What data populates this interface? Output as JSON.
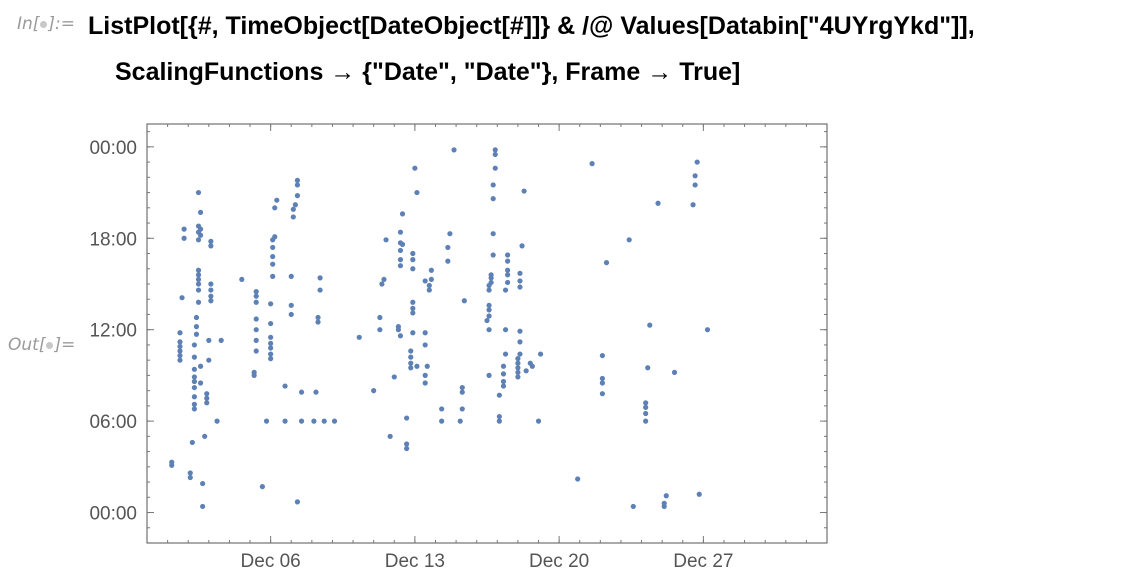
{
  "notebook": {
    "input_label": "In[",
    "input_label_end": "]:=",
    "output_label": "Out[",
    "output_label_end": "]=",
    "code_line1": "ListPlot[{#, TimeObject[DateObject[#]]} & /@ Values[Databin[\"4UYrgYkd\"]],",
    "code_line2": "ScalingFunctions → {\"Date\", \"Date\"}, Frame → True]"
  },
  "chart_data": {
    "type": "scatter",
    "color": "#5e81b5",
    "frame": true,
    "grid": false,
    "x_axis": {
      "scale": "date",
      "range": [
        "Nov 30",
        "Jan 2"
      ],
      "tick_labels": [
        "Dec 06",
        "Dec 13",
        "Dec 20",
        "Dec 27"
      ],
      "tick_days": [
        6,
        13,
        20,
        27
      ]
    },
    "y_axis": {
      "scale": "time",
      "range": [
        "-02:00",
        "25:30"
      ],
      "tick_labels": [
        "00:00",
        "06:00",
        "12:00",
        "18:00",
        "00:00"
      ],
      "tick_hours": [
        0,
        6,
        12,
        18,
        24
      ]
    },
    "points": [
      [
        1.2,
        3.3
      ],
      [
        1.2,
        3.1
      ],
      [
        1.6,
        11.8
      ],
      [
        1.6,
        11.2
      ],
      [
        1.6,
        10.9
      ],
      [
        1.6,
        10.6
      ],
      [
        1.6,
        10.3
      ],
      [
        1.6,
        10.0
      ],
      [
        1.7,
        14.1
      ],
      [
        1.8,
        18.6
      ],
      [
        1.8,
        18.0
      ],
      [
        2.1,
        2.6
      ],
      [
        2.1,
        2.3
      ],
      [
        2.2,
        4.6
      ],
      [
        2.3,
        11.0
      ],
      [
        2.3,
        10.2
      ],
      [
        2.3,
        9.4
      ],
      [
        2.3,
        8.9
      ],
      [
        2.3,
        8.6
      ],
      [
        2.3,
        8.2
      ],
      [
        2.3,
        7.6
      ],
      [
        2.3,
        7.1
      ],
      [
        2.3,
        6.8
      ],
      [
        2.4,
        12.2
      ],
      [
        2.4,
        11.7
      ],
      [
        2.4,
        12.8
      ],
      [
        2.5,
        15.6
      ],
      [
        2.5,
        15.3
      ],
      [
        2.5,
        15.0
      ],
      [
        2.5,
        14.6
      ],
      [
        2.5,
        13.8
      ],
      [
        2.5,
        15.9
      ],
      [
        2.5,
        17.9
      ],
      [
        2.5,
        18.4
      ],
      [
        2.5,
        18.8
      ],
      [
        2.6,
        19.7
      ],
      [
        2.6,
        18.6
      ],
      [
        2.6,
        18.2
      ],
      [
        2.5,
        21.0
      ],
      [
        2.6,
        9.6
      ],
      [
        2.6,
        8.5
      ],
      [
        2.7,
        0.4
      ],
      [
        2.7,
        1.9
      ],
      [
        2.8,
        5.0
      ],
      [
        2.9,
        7.8
      ],
      [
        2.9,
        7.5
      ],
      [
        2.9,
        7.2
      ],
      [
        3.0,
        10.0
      ],
      [
        3.0,
        11.3
      ],
      [
        3.1,
        17.8
      ],
      [
        3.1,
        17.5
      ],
      [
        3.1,
        15.0
      ],
      [
        3.1,
        14.6
      ],
      [
        3.1,
        14.2
      ],
      [
        3.1,
        13.9
      ],
      [
        3.4,
        6.0
      ],
      [
        3.6,
        11.3
      ],
      [
        4.6,
        15.3
      ],
      [
        5.2,
        9.2
      ],
      [
        5.2,
        9.0
      ],
      [
        5.3,
        14.5
      ],
      [
        5.3,
        14.2
      ],
      [
        5.3,
        13.8
      ],
      [
        5.3,
        12.7
      ],
      [
        5.3,
        12.0
      ],
      [
        5.3,
        11.3
      ],
      [
        5.3,
        10.6
      ],
      [
        5.6,
        1.7
      ],
      [
        5.8,
        6.0
      ],
      [
        6.0,
        11.5
      ],
      [
        6.0,
        11.1
      ],
      [
        6.0,
        10.8
      ],
      [
        6.0,
        10.4
      ],
      [
        6.0,
        10.1
      ],
      [
        6.0,
        12.4
      ],
      [
        6.0,
        13.7
      ],
      [
        6.1,
        15.5
      ],
      [
        6.1,
        16.3
      ],
      [
        6.1,
        16.8
      ],
      [
        6.1,
        17.4
      ],
      [
        6.1,
        17.9
      ],
      [
        6.2,
        18.1
      ],
      [
        6.2,
        20.0
      ],
      [
        6.3,
        20.5
      ],
      [
        6.7,
        6.0
      ],
      [
        6.7,
        8.3
      ],
      [
        7.0,
        13.0
      ],
      [
        7.0,
        13.6
      ],
      [
        7.0,
        15.5
      ],
      [
        7.1,
        19.4
      ],
      [
        7.1,
        19.9
      ],
      [
        7.2,
        20.2
      ],
      [
        7.3,
        20.8
      ],
      [
        7.3,
        21.5
      ],
      [
        7.3,
        21.8
      ],
      [
        7.3,
        0.7
      ],
      [
        7.5,
        6.0
      ],
      [
        7.5,
        7.9
      ],
      [
        8.1,
        6.0
      ],
      [
        8.2,
        7.9
      ],
      [
        8.3,
        12.5
      ],
      [
        8.3,
        12.8
      ],
      [
        8.4,
        14.6
      ],
      [
        8.4,
        15.4
      ],
      [
        8.6,
        6.0
      ],
      [
        9.1,
        6.0
      ],
      [
        10.3,
        11.5
      ],
      [
        11.0,
        8.0
      ],
      [
        11.3,
        12.0
      ],
      [
        11.3,
        12.8
      ],
      [
        11.4,
        15.0
      ],
      [
        11.5,
        15.3
      ],
      [
        11.6,
        17.9
      ],
      [
        11.8,
        5.0
      ],
      [
        12.0,
        8.9
      ],
      [
        12.2,
        12.0
      ],
      [
        12.2,
        12.2
      ],
      [
        12.3,
        16.2
      ],
      [
        12.3,
        16.6
      ],
      [
        12.3,
        17.2
      ],
      [
        12.3,
        17.7
      ],
      [
        12.3,
        18.4
      ],
      [
        12.4,
        17.6
      ],
      [
        12.4,
        19.6
      ],
      [
        12.3,
        11.6
      ],
      [
        12.6,
        6.2
      ],
      [
        12.6,
        4.5
      ],
      [
        12.6,
        4.2
      ],
      [
        12.8,
        9.5
      ],
      [
        12.8,
        9.8
      ],
      [
        12.8,
        10.2
      ],
      [
        12.8,
        10.6
      ],
      [
        12.9,
        11.8
      ],
      [
        12.9,
        13.1
      ],
      [
        12.9,
        13.4
      ],
      [
        12.9,
        13.8
      ],
      [
        12.9,
        16.0
      ],
      [
        12.9,
        16.6
      ],
      [
        12.9,
        17.0
      ],
      [
        13.0,
        22.6
      ],
      [
        13.1,
        9.6
      ],
      [
        13.1,
        21.0
      ],
      [
        13.5,
        8.5
      ],
      [
        13.5,
        9.0
      ],
      [
        13.6,
        9.6
      ],
      [
        13.5,
        11.0
      ],
      [
        13.5,
        11.8
      ],
      [
        13.5,
        15.2
      ],
      [
        13.7,
        14.6
      ],
      [
        13.7,
        14.9
      ],
      [
        13.8,
        15.9
      ],
      [
        13.8,
        15.3
      ],
      [
        14.3,
        6.0
      ],
      [
        14.3,
        6.8
      ],
      [
        14.6,
        16.5
      ],
      [
        14.6,
        17.4
      ],
      [
        14.7,
        18.3
      ],
      [
        14.9,
        23.8
      ],
      [
        15.2,
        6.0
      ],
      [
        15.3,
        6.8
      ],
      [
        15.3,
        7.9
      ],
      [
        15.3,
        8.2
      ],
      [
        15.4,
        13.9
      ],
      [
        16.6,
        9.0
      ],
      [
        16.5,
        12.6
      ],
      [
        16.6,
        12.0
      ],
      [
        16.6,
        12.9
      ],
      [
        16.6,
        13.3
      ],
      [
        16.6,
        13.6
      ],
      [
        16.6,
        14.6
      ],
      [
        16.6,
        14.9
      ],
      [
        16.7,
        15.1
      ],
      [
        16.7,
        15.4
      ],
      [
        16.7,
        15.6
      ],
      [
        16.8,
        16.9
      ],
      [
        16.8,
        18.3
      ],
      [
        16.8,
        20.6
      ],
      [
        16.8,
        21.5
      ],
      [
        16.9,
        22.6
      ],
      [
        16.9,
        23.5
      ],
      [
        16.9,
        23.8
      ],
      [
        17.1,
        6.0
      ],
      [
        17.1,
        6.3
      ],
      [
        17.1,
        7.7
      ],
      [
        17.3,
        8.3
      ],
      [
        17.3,
        8.6
      ],
      [
        17.3,
        9.1
      ],
      [
        17.3,
        9.6
      ],
      [
        17.4,
        10.4
      ],
      [
        17.4,
        12.0
      ],
      [
        17.4,
        14.6
      ],
      [
        17.5,
        15.1
      ],
      [
        17.5,
        15.6
      ],
      [
        17.5,
        15.9
      ],
      [
        17.5,
        16.5
      ],
      [
        17.5,
        16.9
      ],
      [
        18.0,
        8.9
      ],
      [
        18.0,
        9.2
      ],
      [
        18.0,
        9.5
      ],
      [
        18.0,
        9.8
      ],
      [
        18.0,
        10.1
      ],
      [
        18.1,
        10.4
      ],
      [
        18.1,
        11.2
      ],
      [
        18.1,
        11.9
      ],
      [
        18.1,
        14.8
      ],
      [
        18.1,
        15.2
      ],
      [
        18.1,
        15.7
      ],
      [
        18.2,
        17.5
      ],
      [
        18.3,
        21.1
      ],
      [
        18.4,
        9.3
      ],
      [
        18.6,
        9.8
      ],
      [
        18.7,
        9.6
      ],
      [
        19.0,
        6.0
      ],
      [
        19.1,
        10.4
      ],
      [
        20.9,
        2.2
      ],
      [
        21.6,
        22.9
      ],
      [
        22.1,
        7.8
      ],
      [
        22.1,
        8.5
      ],
      [
        22.1,
        8.8
      ],
      [
        22.1,
        10.3
      ],
      [
        22.3,
        16.4
      ],
      [
        23.4,
        17.9
      ],
      [
        23.6,
        0.4
      ],
      [
        24.2,
        6.0
      ],
      [
        24.2,
        6.5
      ],
      [
        24.2,
        6.9
      ],
      [
        24.2,
        7.2
      ],
      [
        24.3,
        9.5
      ],
      [
        24.4,
        12.3
      ],
      [
        24.8,
        20.3
      ],
      [
        25.1,
        0.4
      ],
      [
        25.1,
        0.6
      ],
      [
        25.2,
        1.1
      ],
      [
        25.6,
        9.2
      ],
      [
        26.5,
        20.2
      ],
      [
        26.6,
        21.5
      ],
      [
        26.6,
        22.1
      ],
      [
        26.7,
        23.0
      ],
      [
        26.8,
        1.2
      ],
      [
        27.2,
        12.0
      ]
    ]
  }
}
